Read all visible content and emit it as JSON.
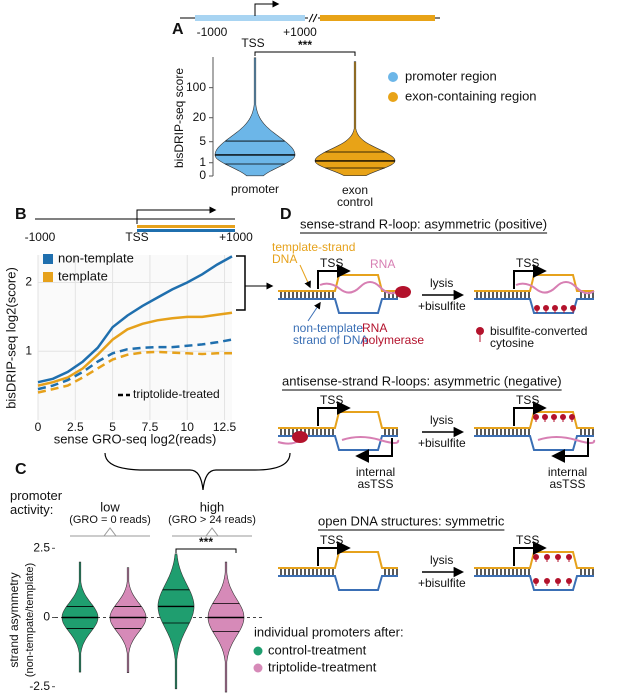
{
  "panel_labels": [
    "A",
    "B",
    "C",
    "D"
  ],
  "gene_a": {
    "left": "-1000",
    "tss": "TSS",
    "right": "+1000"
  },
  "gene_b": {
    "left": "-1000",
    "tss": "TSS",
    "right": "+1000"
  },
  "chart_data": [
    {
      "type": "violin",
      "ylabel": "bisDRIP-seq score",
      "scale": "log1p",
      "ylim": [
        0,
        500
      ],
      "yticks": [
        0,
        1,
        5,
        20,
        100
      ],
      "categories": [
        "promoter",
        "exon control"
      ],
      "legend": [
        "promoter region",
        "exon-containing region"
      ],
      "colors": [
        "#6cb6e8",
        "#e8a317"
      ],
      "medians": [
        2.0,
        1.2
      ],
      "q1": [
        0.87,
        0.52
      ],
      "q3": [
        5.2,
        2.5
      ],
      "min": [
        0,
        0
      ],
      "max": [
        480,
        390
      ],
      "annotation": "***"
    },
    {
      "type": "line",
      "xlabel": "sense GRO-seq log2(reads)",
      "ylabel": "bisDRIP-seq log2(score)",
      "x": [
        0,
        1,
        2,
        3,
        4,
        5,
        6,
        7,
        8,
        9,
        10,
        11,
        12,
        13
      ],
      "xlim": [
        0,
        13
      ],
      "xticks": [
        0,
        2.5,
        5,
        7.5,
        10,
        12.5
      ],
      "ylim": [
        0,
        2.4
      ],
      "yticks": [
        1,
        2
      ],
      "grid": true,
      "series": [
        {
          "name": "non-template",
          "color": "#1f6fae",
          "values": [
            0.55,
            0.6,
            0.7,
            0.85,
            1.05,
            1.35,
            1.52,
            1.66,
            1.78,
            1.9,
            2.0,
            2.12,
            2.26,
            2.38
          ]
        },
        {
          "name": "template",
          "color": "#e6a11b",
          "values": [
            0.5,
            0.55,
            0.62,
            0.75,
            0.95,
            1.17,
            1.32,
            1.4,
            1.45,
            1.48,
            1.5,
            1.5,
            1.53,
            1.56
          ]
        },
        {
          "color": "#1f6fae",
          "dashed": true,
          "values": [
            0.45,
            0.5,
            0.58,
            0.7,
            0.85,
            0.97,
            1.03,
            1.05,
            1.06,
            1.06,
            1.08,
            1.1,
            1.13,
            1.17
          ]
        },
        {
          "color": "#e6a11b",
          "dashed": true,
          "values": [
            0.4,
            0.45,
            0.5,
            0.62,
            0.75,
            0.88,
            0.95,
            0.98,
            0.99,
            0.98,
            0.97,
            0.96,
            0.97,
            0.97
          ]
        }
      ],
      "dashed_legend": "triptolide-treated"
    },
    {
      "type": "violin",
      "ylabel": "strand asymmetry",
      "ylabel2": "(non-tempate/template)",
      "ylim": [
        -2.8,
        2.8
      ],
      "yticks": [
        2.5,
        0,
        -2.5
      ],
      "zero_line": true,
      "group_title": "promoter activity:",
      "groups": [
        {
          "label": "low",
          "sublabel": "(GRO = 0 reads)"
        },
        {
          "label": "high",
          "sublabel": "(GRO > 24 reads)"
        }
      ],
      "legend_title": "individual promoters after:",
      "legend": [
        "control-treatment",
        "triptolide-treatment"
      ],
      "colors": [
        "#1f9e6f",
        "#d68ab8",
        "#1f9e6f",
        "#d68ab8"
      ],
      "medians": [
        0,
        0,
        0.4,
        0
      ],
      "q1": [
        -0.4,
        -0.4,
        -0.2,
        -0.5
      ],
      "q3": [
        0.4,
        0.4,
        1.0,
        0.5
      ],
      "min": [
        -2.0,
        -2.0,
        -2.6,
        -2.7
      ],
      "max": [
        2.0,
        1.8,
        2.3,
        2.0
      ],
      "annotation": "***"
    }
  ],
  "diagram": {
    "rows": [
      {
        "title": "sense-strand R-loop: asymmetric (positive)"
      },
      {
        "title": "antisense-strand R-loops: asymmetric (negative)"
      },
      {
        "title": "open DNA structures: symmetric"
      }
    ],
    "tss": "TSS",
    "lysis": "lysis",
    "bisulfite": "+bisulfite",
    "template_strand": "template-strand DNA",
    "rna": "RNA",
    "non_template_strand": "non-template strand of DNA",
    "rna_polymerase": "RNA polymerase",
    "converted": "bisulfite-converted cytosine",
    "internal": "internal asTSS"
  }
}
